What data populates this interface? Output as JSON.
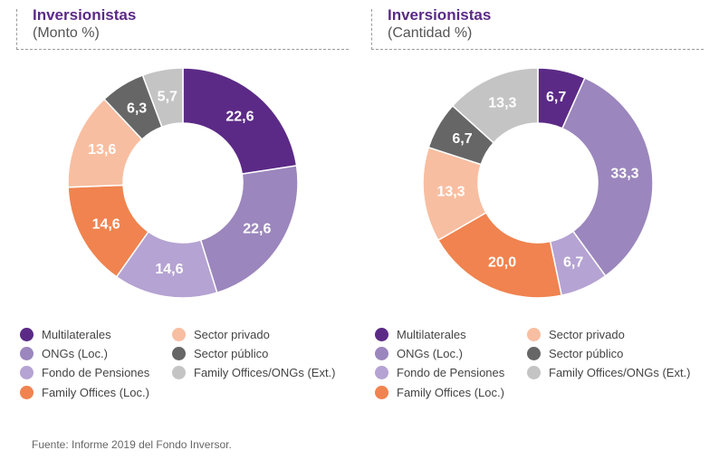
{
  "chart_data": [
    {
      "type": "pie",
      "donut": true,
      "title": "Inversionistas",
      "subtitle": "(Monto %)",
      "slices": [
        {
          "label": "Multilaterales",
          "value": 22.6,
          "text": "22,6",
          "color": "#5b2a86",
          "label_color": "#ffffff"
        },
        {
          "label": "ONGs (Loc.)",
          "value": 22.6,
          "text": "22,6",
          "color": "#9b86bd",
          "label_color": "#ffffff"
        },
        {
          "label": "Fondo de Pensiones",
          "value": 14.6,
          "text": "14,6",
          "color": "#b5a3d3",
          "label_color": "#ffffff"
        },
        {
          "label": "Family Offices (Loc.)",
          "value": 14.6,
          "text": "14,6",
          "color": "#f0834f",
          "label_color": "#ffffff"
        },
        {
          "label": "Sector privado",
          "value": 13.6,
          "text": "13,6",
          "color": "#f8bea1",
          "label_color": "#ffffff"
        },
        {
          "label": "Sector público",
          "value": 6.3,
          "text": "6,3",
          "color": "#666666",
          "label_color": "#ffffff"
        },
        {
          "label": "Family Offices/ONGs (Ext.)",
          "value": 5.7,
          "text": "5,7",
          "color": "#c4c4c4",
          "label_color": "#ffffff"
        }
      ]
    },
    {
      "type": "pie",
      "donut": true,
      "title": "Inversionistas",
      "subtitle": "(Cantidad %)",
      "slices": [
        {
          "label": "Multilaterales",
          "value": 6.7,
          "text": "6,7",
          "color": "#5b2a86",
          "label_color": "#ffffff"
        },
        {
          "label": "ONGs (Loc.)",
          "value": 33.3,
          "text": "33,3",
          "color": "#9b86bd",
          "label_color": "#ffffff"
        },
        {
          "label": "Fondo de Pensiones",
          "value": 6.7,
          "text": "6,7",
          "color": "#b5a3d3",
          "label_color": "#ffffff"
        },
        {
          "label": "Family Offices (Loc.)",
          "value": 20.0,
          "text": "20,0",
          "color": "#f0834f",
          "label_color": "#ffffff"
        },
        {
          "label": "Sector privado",
          "value": 13.3,
          "text": "13,3",
          "color": "#f8bea1",
          "label_color": "#ffffff"
        },
        {
          "label": "Sector público",
          "value": 6.7,
          "text": "6,7",
          "color": "#666666",
          "label_color": "#ffffff"
        },
        {
          "label": "Family Offices/ONGs (Ext.)",
          "value": 13.3,
          "text": "13,3",
          "color": "#c4c4c4",
          "label_color": "#ffffff"
        }
      ]
    }
  ],
  "legend": [
    {
      "label": "Multilaterales",
      "color": "#5b2a86"
    },
    {
      "label": "ONGs (Loc.)",
      "color": "#9b86bd"
    },
    {
      "label": "Fondo de Pensiones",
      "color": "#b5a3d3"
    },
    {
      "label": "Family Offices (Loc.)",
      "color": "#f0834f"
    },
    {
      "label": "Sector privado",
      "color": "#f8bea1"
    },
    {
      "label": "Sector público",
      "color": "#666666"
    },
    {
      "label": "Family Offices/ONGs (Ext.)",
      "color": "#c4c4c4"
    }
  ],
  "source": "Fuente: Informe 2019 del Fondo Inversor."
}
